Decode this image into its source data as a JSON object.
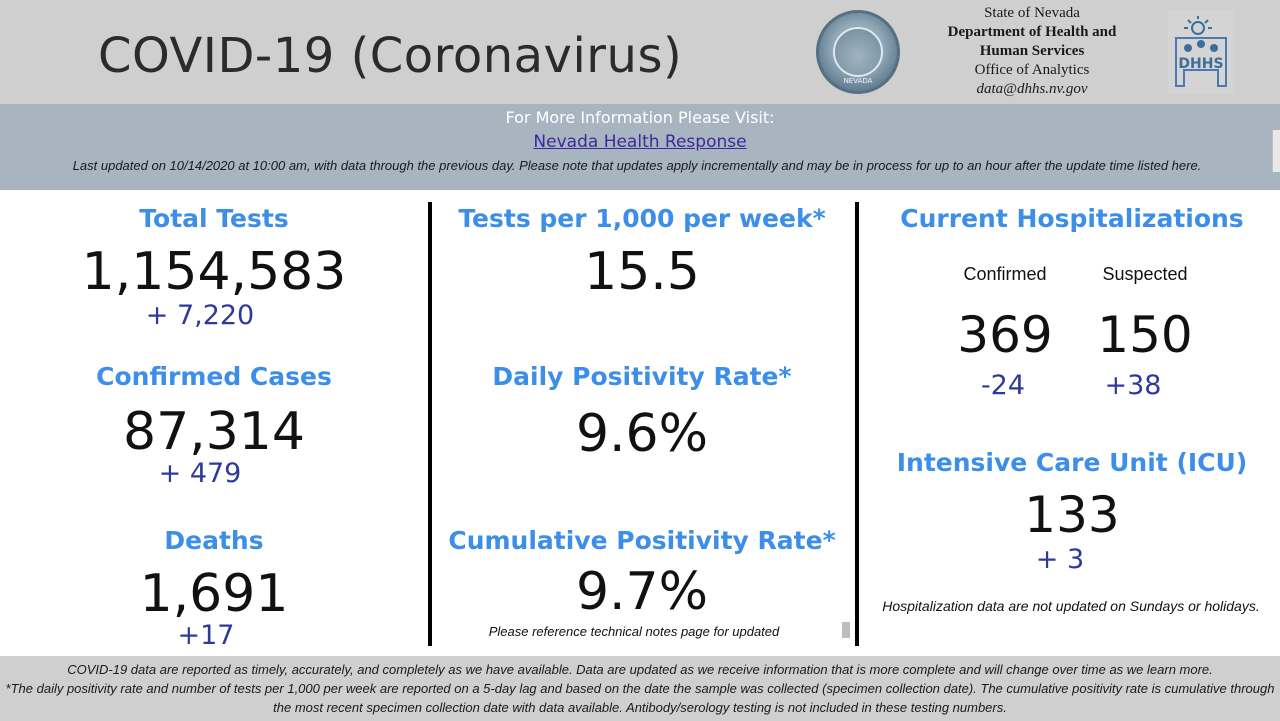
{
  "header": {
    "title": "COVID-19 (Coronavirus)",
    "seal_text": "NEVADA",
    "agency": {
      "line1": "State of Nevada",
      "line2": "Department of Health and",
      "line3": "Human Services",
      "line4": "Office of Analytics",
      "line5": "data@dhhs.nv.gov"
    },
    "logo_text": "DHHS"
  },
  "info": {
    "title": "For More Information Please Visit:",
    "link_label": "Nevada Health Response",
    "updated": "Last updated on 10/14/2020 at 10:00 am, with data through the previous day.  Please note that updates apply incrementally and may be in process for up to an hour after the update time listed here."
  },
  "col1": {
    "tests_label": "Total Tests",
    "tests_value": "1,154,583",
    "tests_delta": "+  7,220",
    "cases_label": "Confirmed Cases",
    "cases_value": "87,314",
    "cases_delta": "+ 479",
    "deaths_label": "Deaths",
    "deaths_value": "1,691",
    "deaths_delta": "+17"
  },
  "col2": {
    "tpw_label": "Tests per 1,000 per week*",
    "tpw_value": "15.5",
    "dpr_label": "Daily Positivity Rate*",
    "dpr_value": "9.6%",
    "cpr_label": "Cumulative Positivity Rate*",
    "cpr_value": "9.7%",
    "note": "Please reference technical notes page for updated"
  },
  "col3": {
    "hosp_label": "Current Hospitalizations",
    "confirmed_label": "Confirmed",
    "suspected_label": "Suspected",
    "confirmed_value": "369",
    "suspected_value": "150",
    "confirmed_delta": "-24",
    "suspected_delta": "+38",
    "icu_label": "Intensive Care Unit (ICU)",
    "icu_value": "133",
    "icu_delta": "+ 3",
    "note": "Hospitalization data are not updated on Sundays or holidays."
  },
  "footer": {
    "line1": "COVID-19 data are reported as timely, accurately, and completely as we have available.  Data are updated as we receive information that is more complete and will change over time as we learn more.",
    "line2": "*The daily positivity rate and number of tests per 1,000 per week are reported on a 5-day lag and based on the date the sample was collected (specimen collection date).  The cumulative positivity rate is cumulative through the most recent specimen collection date with data available.  Antibody/serology testing is not included in these testing numbers."
  },
  "colors": {
    "label_blue": "#3c8ee8",
    "delta_navy": "#2e3a9a",
    "header_gray": "#cfcfcf",
    "info_bar": "#a8b5c1",
    "link_purple": "#3b2a9e"
  }
}
